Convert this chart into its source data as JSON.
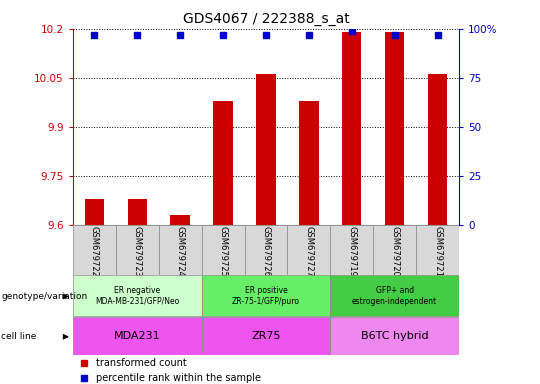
{
  "title": "GDS4067 / 222388_s_at",
  "samples": [
    "GSM679722",
    "GSM679723",
    "GSM679724",
    "GSM679725",
    "GSM679726",
    "GSM679727",
    "GSM679719",
    "GSM679720",
    "GSM679721"
  ],
  "transformed_counts": [
    9.68,
    9.68,
    9.63,
    9.98,
    10.06,
    9.98,
    10.19,
    10.19,
    10.06
  ],
  "percentile_ranks": [
    97,
    97,
    97,
    97,
    97,
    97,
    99,
    97,
    97
  ],
  "ylim": [
    9.6,
    10.2
  ],
  "yticks": [
    9.6,
    9.75,
    9.9,
    10.05,
    10.2
  ],
  "ytick_labels": [
    "9.6",
    "9.75",
    "9.9",
    "10.05",
    "10.2"
  ],
  "right_yticks": [
    0,
    25,
    50,
    75,
    100
  ],
  "right_ytick_labels": [
    "0",
    "25",
    "50",
    "75",
    "100%"
  ],
  "bar_color": "#cc0000",
  "dot_color": "#0000cc",
  "bar_bottom": 9.6,
  "group_colors": [
    "#ccffcc",
    "#66dd66",
    "#44cc44"
  ],
  "group_labels": [
    "ER negative\nMDA-MB-231/GFP/Neo",
    "ER positive\nZR-75-1/GFP/puro",
    "GFP+ and\nestrogen-independent"
  ],
  "group_ranges": [
    [
      0,
      3
    ],
    [
      3,
      6
    ],
    [
      6,
      9
    ]
  ],
  "cell_colors": [
    "#ee66ee",
    "#ee44ee",
    "#dd88dd"
  ],
  "cell_labels": [
    "MDA231",
    "ZR75",
    "B6TC hybrid"
  ],
  "genotype_label": "genotype/variation",
  "cell_line_label": "cell line",
  "legend_items": [
    {
      "color": "#cc0000",
      "label": "transformed count"
    },
    {
      "color": "#0000cc",
      "label": "percentile rank within the sample"
    }
  ],
  "sample_bg_color": "#d8d8d8",
  "sample_border_color": "#888888"
}
